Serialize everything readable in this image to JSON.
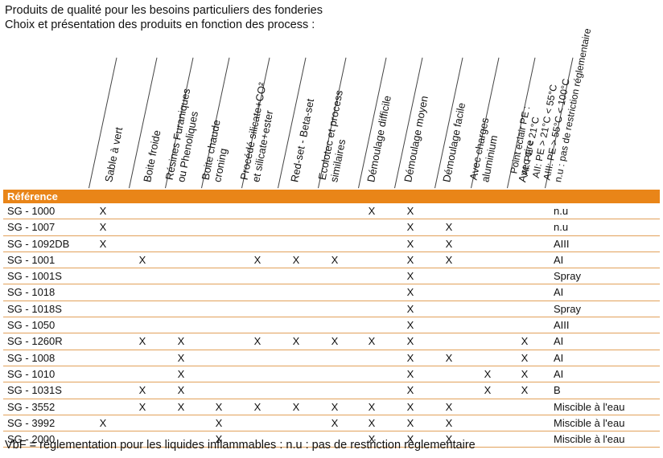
{
  "title_line1": "Produits de qualité pour les besoins particuliers des fonderies",
  "title_line2": "Choix et présentation des produits en fonction des process :",
  "columns": [
    "Sable à vert",
    "Boite froide",
    "Résines Furaniques\nou Phenoliques",
    "Boite chaude\ncroning",
    "Procédé silicate+CO²\net silicate+ester",
    "Red-set - Beta-set",
    "Ecolotec et process\nsimilaires",
    "Démoulage difficile",
    "Démoulage moyen",
    "Démoulage facile",
    "Avec charges\naluminium",
    "Avec cire",
    "Point eclair PE :\nAI: PE < 21°C\nAII: PE > 21°C < 55°C\nAIII: PE > 55°C < 100°C\nn.u : pas de restriction réglementaire"
  ],
  "reference_label": "Référence",
  "mark_symbol": "X",
  "rows": [
    {
      "ref": "SG - 1000",
      "marks": [
        1,
        0,
        0,
        0,
        0,
        0,
        0,
        1,
        1,
        0,
        0,
        0
      ],
      "pe": "n.u"
    },
    {
      "ref": "SG - 1007",
      "marks": [
        1,
        0,
        0,
        0,
        0,
        0,
        0,
        0,
        1,
        1,
        0,
        0
      ],
      "pe": "n.u"
    },
    {
      "ref": "SG - 1092DB",
      "marks": [
        1,
        0,
        0,
        0,
        0,
        0,
        0,
        0,
        1,
        1,
        0,
        0
      ],
      "pe": "AIII"
    },
    {
      "ref": "SG - 1001",
      "marks": [
        0,
        1,
        0,
        0,
        1,
        1,
        1,
        0,
        1,
        1,
        0,
        0
      ],
      "pe": "AI"
    },
    {
      "ref": "SG - 1001S",
      "marks": [
        0,
        0,
        0,
        0,
        0,
        0,
        0,
        0,
        1,
        0,
        0,
        0
      ],
      "pe": "Spray"
    },
    {
      "ref": "SG - 1018",
      "marks": [
        0,
        0,
        0,
        0,
        0,
        0,
        0,
        0,
        1,
        0,
        0,
        0
      ],
      "pe": "AI"
    },
    {
      "ref": "SG - 1018S",
      "marks": [
        0,
        0,
        0,
        0,
        0,
        0,
        0,
        0,
        1,
        0,
        0,
        0
      ],
      "pe": "Spray"
    },
    {
      "ref": "SG - 1050",
      "marks": [
        0,
        0,
        0,
        0,
        0,
        0,
        0,
        0,
        1,
        0,
        0,
        0
      ],
      "pe": "AIII"
    },
    {
      "ref": "SG - 1260R",
      "marks": [
        0,
        1,
        1,
        0,
        1,
        1,
        1,
        1,
        1,
        0,
        0,
        1
      ],
      "pe": "AI"
    },
    {
      "ref": "SG - 1008",
      "marks": [
        0,
        0,
        1,
        0,
        0,
        0,
        0,
        0,
        1,
        1,
        0,
        1
      ],
      "pe": "AI"
    },
    {
      "ref": "SG - 1010",
      "marks": [
        0,
        0,
        1,
        0,
        0,
        0,
        0,
        0,
        1,
        0,
        1,
        1
      ],
      "pe": "AI"
    },
    {
      "ref": "SG - 1031S",
      "marks": [
        0,
        1,
        1,
        0,
        0,
        0,
        0,
        0,
        1,
        0,
        1,
        1
      ],
      "pe": "B"
    },
    {
      "ref": "SG - 3552",
      "marks": [
        0,
        1,
        1,
        1,
        1,
        1,
        1,
        1,
        1,
        1,
        0,
        0
      ],
      "pe": "Miscible à l'eau"
    },
    {
      "ref": "SG - 3992",
      "marks": [
        1,
        0,
        0,
        1,
        0,
        0,
        1,
        1,
        1,
        1,
        0,
        0
      ],
      "pe": "Miscible à l'eau"
    },
    {
      "ref": "SG - 2000",
      "marks": [
        0,
        0,
        0,
        1,
        0,
        0,
        0,
        1,
        1,
        1,
        0,
        0
      ],
      "pe": "Miscible à l'eau"
    }
  ],
  "footer": "VbF = réglementation pour les liquides inflammables : n.u : pas de restriction règlementaire"
}
